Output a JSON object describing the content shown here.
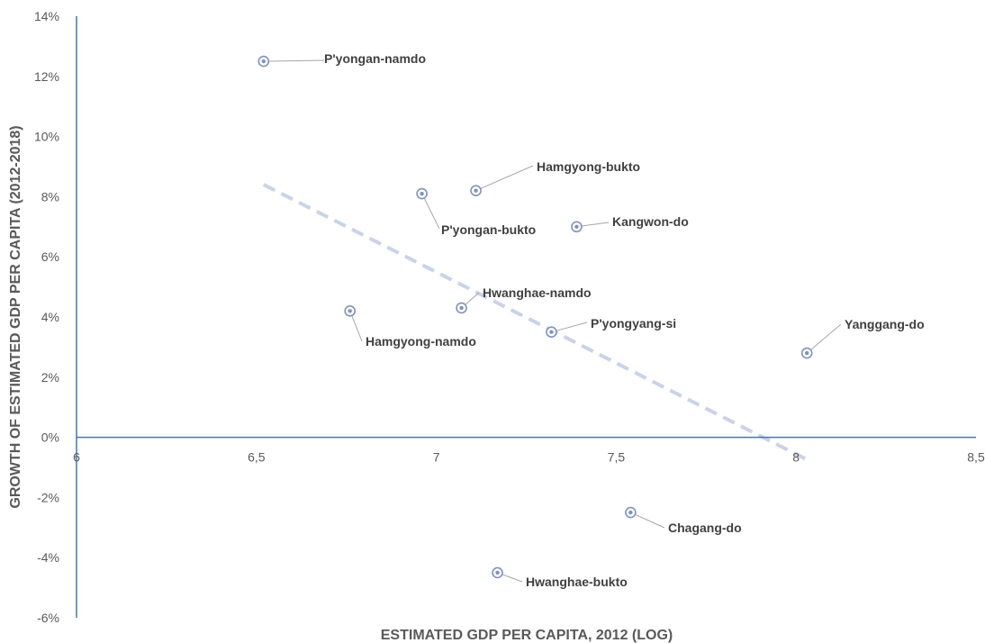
{
  "chart_data": {
    "type": "scatter",
    "title": "",
    "xlabel": "ESTIMATED GDP PER CAPITA, 2012 (LOG)",
    "ylabel": "GROWTH OF ESTIMATED GDP PER CAPITA (2012-2018)",
    "xlim": [
      6,
      8.5
    ],
    "ylim": [
      -6,
      14
    ],
    "x_ticks": [
      "6",
      "6,5",
      "7",
      "7,5",
      "8",
      "8,5"
    ],
    "y_ticks": [
      "-6%",
      "-4%",
      "-2%",
      "0%",
      "2%",
      "4%",
      "6%",
      "8%",
      "10%",
      "12%",
      "14%"
    ],
    "x_tick_values": [
      6,
      6.5,
      7,
      7.5,
      8,
      8.5
    ],
    "y_tick_values": [
      -6,
      -4,
      -2,
      0,
      2,
      4,
      6,
      8,
      10,
      12,
      14
    ],
    "grid": false,
    "legend": "none",
    "marker_color": "#7f93c2",
    "trendline_color": "#c9d3e8",
    "axis_color": "#4472c4",
    "points": [
      {
        "label": "P'yongan-namdo",
        "x": 6.52,
        "y": 12.5
      },
      {
        "label": "Hamgyong-bukto",
        "x": 7.11,
        "y": 8.2
      },
      {
        "label": "P'yongan-bukto",
        "x": 6.96,
        "y": 8.1
      },
      {
        "label": "Kangwon-do",
        "x": 7.39,
        "y": 7.0
      },
      {
        "label": "Hwanghae-namdo",
        "x": 7.07,
        "y": 4.3
      },
      {
        "label": "Hamgyong-namdo",
        "x": 6.76,
        "y": 4.2
      },
      {
        "label": "P'yongyang-si",
        "x": 7.32,
        "y": 3.5
      },
      {
        "label": "Yanggang-do",
        "x": 8.03,
        "y": 2.8
      },
      {
        "label": "Chagang-do",
        "x": 7.54,
        "y": -2.5
      },
      {
        "label": "Hwanghae-bukto",
        "x": 7.17,
        "y": -4.5
      }
    ],
    "trendline": {
      "x": [
        6.52,
        8.04
      ],
      "y": [
        8.4,
        -0.8
      ]
    }
  }
}
